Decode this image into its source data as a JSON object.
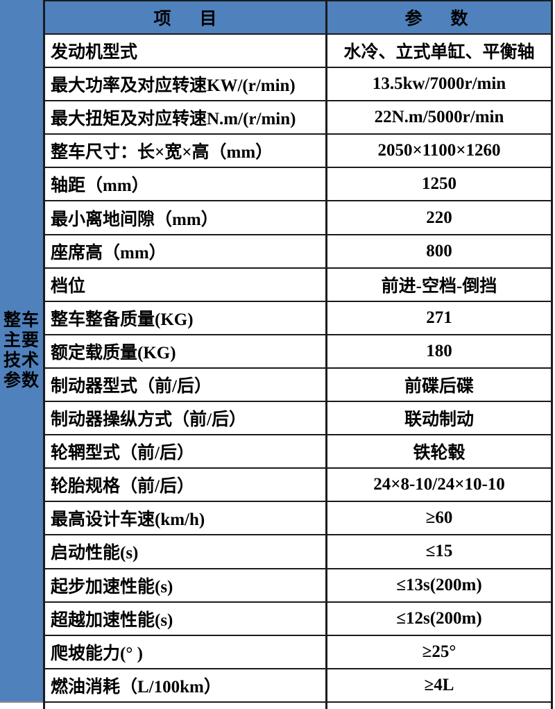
{
  "colors": {
    "header_blue": "#4f81bd",
    "border_dark": "#1b1b1b",
    "text": "#000000"
  },
  "table": {
    "side_label_lines": [
      "整车",
      "主要",
      "技术",
      "参数"
    ],
    "header": {
      "item": "项　目",
      "param": "参　数"
    },
    "rows": [
      {
        "label": "发动机型式",
        "value": "水冷、立式单缸、平衡轴"
      },
      {
        "label": "最大功率及对应转速KW/(r/min)",
        "value": "13.5kw/7000r/min"
      },
      {
        "label": "最大扭矩及对应转速N.m/(r/min)",
        "value": "22N.m/5000r/min"
      },
      {
        "label": "整车尺寸：长×宽×高（mm）",
        "value": "2050×1100×1260"
      },
      {
        "label": "轴距（mm）",
        "value": "1250"
      },
      {
        "label": "最小离地间隙（mm）",
        "value": "220"
      },
      {
        "label": "座席高（mm）",
        "value": "800"
      },
      {
        "label": "档位",
        "value": "前进-空档-倒挡"
      },
      {
        "label": "整车整备质量(KG)",
        "value": "271"
      },
      {
        "label": "额定载质量(KG)",
        "value": "180"
      },
      {
        "label": "制动器型式（前/后）",
        "value": "前碟后碟"
      },
      {
        "label": "制动器操纵方式（前/后）",
        "value": "联动制动"
      },
      {
        "label": "轮辋型式（前/后）",
        "value": "铁轮毂"
      },
      {
        "label": "轮胎规格（前/后）",
        "value": "24×8-10/24×10-10"
      },
      {
        "label": "最高设计车速(km/h)",
        "value": "≥60"
      },
      {
        "label": "启动性能(s)",
        "value": "≤15"
      },
      {
        "label": "起步加速性能(s)",
        "value": "≤13s(200m)"
      },
      {
        "label": "超越加速性能(s)",
        "value": "≤12s(200m)"
      },
      {
        "label": "爬坡能力(° )",
        "value": "≥25°"
      },
      {
        "label": "燃油消耗（L/100km）",
        "value": "≥4L"
      }
    ]
  }
}
